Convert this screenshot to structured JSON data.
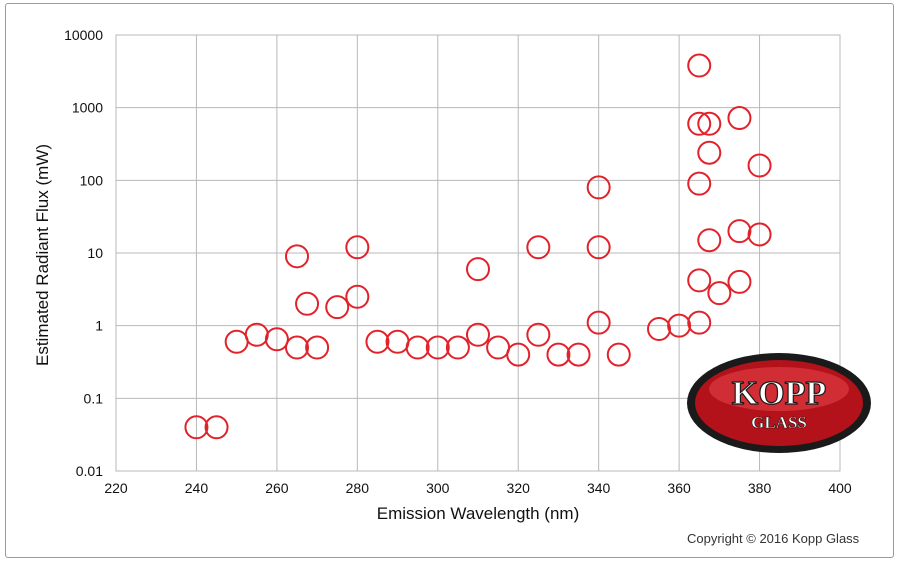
{
  "chart_data": {
    "type": "scatter",
    "xlabel": "Emission Wavelength (nm)",
    "ylabel": "Estimated Radiant Flux (mW)",
    "xlim": [
      220,
      400
    ],
    "ylim": [
      0.01,
      10000
    ],
    "yscale": "log",
    "x_ticks": [
      "220",
      "240",
      "260",
      "280",
      "300",
      "320",
      "340",
      "360",
      "380",
      "400"
    ],
    "y_ticks": [
      "10000",
      "1000",
      "100",
      "10",
      "1",
      "0.1",
      "0.01"
    ],
    "grid": true,
    "marker": "open circle",
    "marker_color": "#e2222b",
    "points": [
      {
        "x": 240,
        "y": 0.04
      },
      {
        "x": 245,
        "y": 0.04
      },
      {
        "x": 250,
        "y": 0.6
      },
      {
        "x": 255,
        "y": 0.75
      },
      {
        "x": 260,
        "y": 0.65
      },
      {
        "x": 265,
        "y": 0.5
      },
      {
        "x": 265,
        "y": 9
      },
      {
        "x": 267.5,
        "y": 2
      },
      {
        "x": 270,
        "y": 0.5
      },
      {
        "x": 275,
        "y": 1.8
      },
      {
        "x": 280,
        "y": 2.5
      },
      {
        "x": 280,
        "y": 12
      },
      {
        "x": 285,
        "y": 0.6
      },
      {
        "x": 290,
        "y": 0.6
      },
      {
        "x": 295,
        "y": 0.5
      },
      {
        "x": 300,
        "y": 0.5
      },
      {
        "x": 305,
        "y": 0.5
      },
      {
        "x": 310,
        "y": 0.75
      },
      {
        "x": 310,
        "y": 6
      },
      {
        "x": 315,
        "y": 0.5
      },
      {
        "x": 320,
        "y": 0.4
      },
      {
        "x": 325,
        "y": 0.75
      },
      {
        "x": 325,
        "y": 12
      },
      {
        "x": 330,
        "y": 0.4
      },
      {
        "x": 335,
        "y": 0.4
      },
      {
        "x": 340,
        "y": 1.1
      },
      {
        "x": 340,
        "y": 12
      },
      {
        "x": 340,
        "y": 80
      },
      {
        "x": 345,
        "y": 0.4
      },
      {
        "x": 355,
        "y": 0.9
      },
      {
        "x": 360,
        "y": 1
      },
      {
        "x": 365,
        "y": 1.1
      },
      {
        "x": 365,
        "y": 4.2
      },
      {
        "x": 365,
        "y": 90
      },
      {
        "x": 365,
        "y": 600
      },
      {
        "x": 365,
        "y": 3800
      },
      {
        "x": 367.5,
        "y": 15
      },
      {
        "x": 367.5,
        "y": 240
      },
      {
        "x": 367.5,
        "y": 600
      },
      {
        "x": 370,
        "y": 2.8
      },
      {
        "x": 375,
        "y": 4
      },
      {
        "x": 375,
        "y": 20
      },
      {
        "x": 375,
        "y": 720
      },
      {
        "x": 380,
        "y": 18
      },
      {
        "x": 380,
        "y": 160
      }
    ]
  },
  "logo": {
    "line1": "KOPP",
    "line2": "GLASS",
    "colors": {
      "outer": "#1a1a1a",
      "fill": "#b3121b",
      "highlight": "#e8434b",
      "text": "#ffffff"
    }
  },
  "copyright": "Copyright © 2016 Kopp Glass"
}
